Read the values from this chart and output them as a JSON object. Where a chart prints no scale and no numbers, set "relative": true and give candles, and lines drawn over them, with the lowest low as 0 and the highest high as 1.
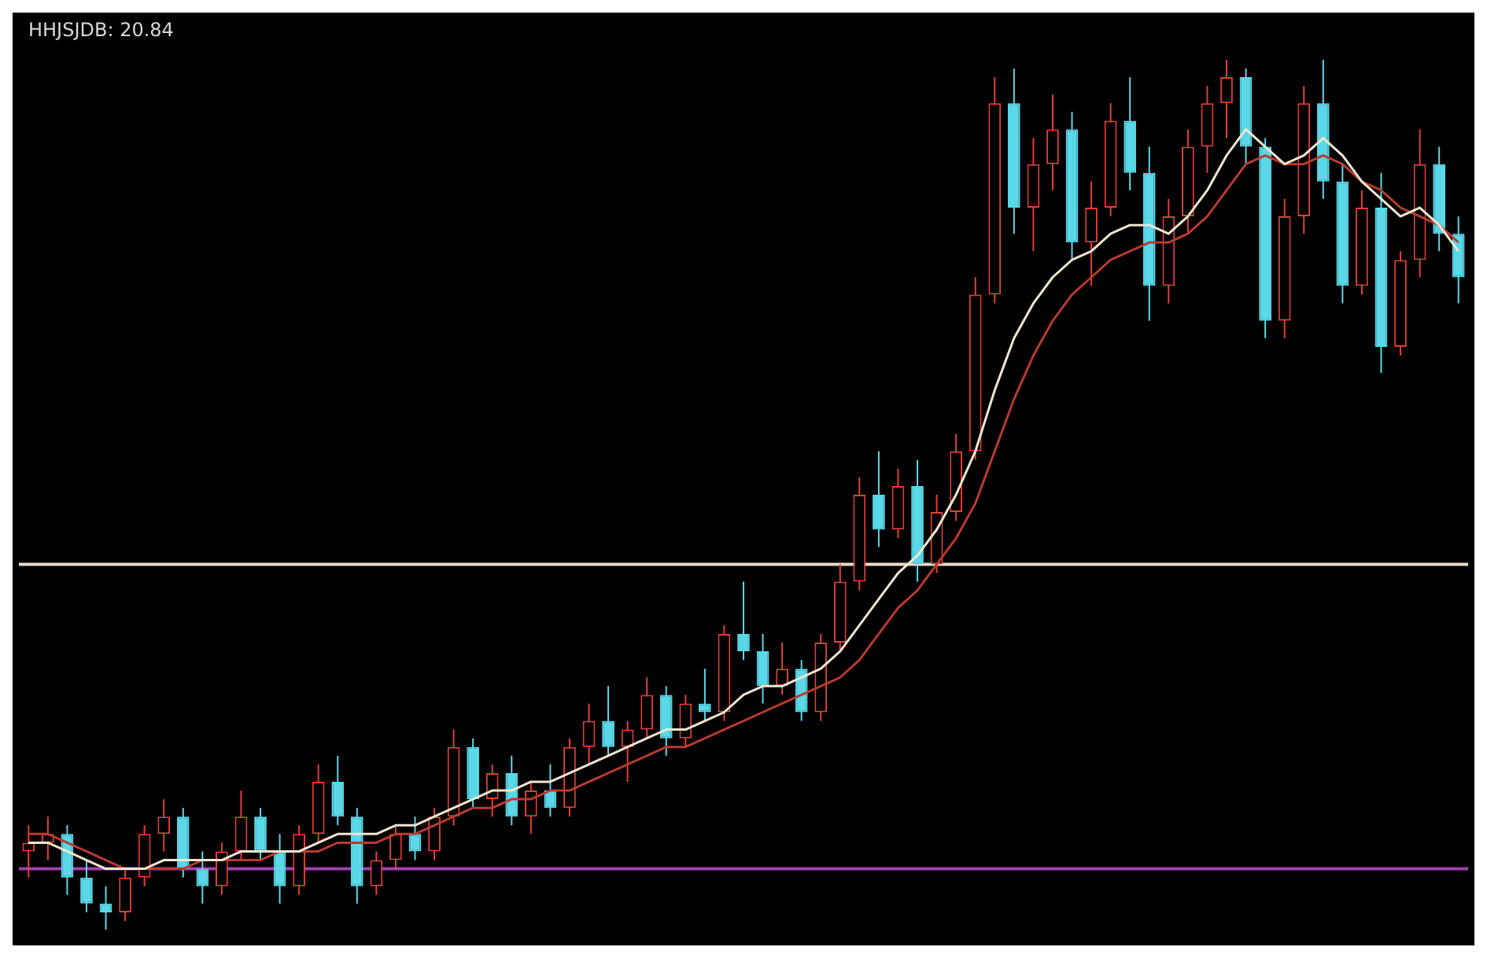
{
  "chart_data": {
    "type": "candlestick",
    "relative": true,
    "categories": [
      null,
      null,
      null,
      null,
      null,
      null,
      null,
      null,
      null,
      null,
      null,
      null,
      null,
      null,
      null,
      null,
      null,
      null,
      null,
      null,
      null,
      null,
      null,
      null,
      null,
      null,
      null,
      null,
      null,
      null,
      null,
      null,
      null,
      null,
      null,
      null,
      null,
      null,
      null,
      null,
      null,
      null,
      null,
      null,
      null,
      null,
      null,
      null,
      null,
      null,
      null,
      null,
      null,
      null,
      null,
      null,
      null,
      null,
      null,
      null,
      null,
      null,
      null,
      null,
      null,
      null,
      null,
      null,
      null,
      null,
      null,
      null,
      null,
      null,
      null
    ],
    "ohlc": [
      [
        0.09,
        0.12,
        0.06,
        0.1
      ],
      [
        0.1,
        0.13,
        0.08,
        0.11
      ],
      [
        0.11,
        0.12,
        0.04,
        0.06
      ],
      [
        0.06,
        0.08,
        0.02,
        0.03
      ],
      [
        0.03,
        0.05,
        0.0,
        0.02
      ],
      [
        0.02,
        0.07,
        0.01,
        0.06
      ],
      [
        0.06,
        0.12,
        0.05,
        0.11
      ],
      [
        0.11,
        0.15,
        0.09,
        0.13
      ],
      [
        0.13,
        0.14,
        0.06,
        0.07
      ],
      [
        0.07,
        0.09,
        0.03,
        0.05
      ],
      [
        0.05,
        0.1,
        0.04,
        0.09
      ],
      [
        0.09,
        0.16,
        0.08,
        0.13
      ],
      [
        0.13,
        0.14,
        0.08,
        0.09
      ],
      [
        0.09,
        0.11,
        0.03,
        0.05
      ],
      [
        0.05,
        0.12,
        0.04,
        0.11
      ],
      [
        0.11,
        0.19,
        0.1,
        0.17
      ],
      [
        0.17,
        0.2,
        0.12,
        0.13
      ],
      [
        0.13,
        0.14,
        0.03,
        0.05
      ],
      [
        0.05,
        0.09,
        0.04,
        0.08
      ],
      [
        0.08,
        0.12,
        0.07,
        0.11
      ],
      [
        0.11,
        0.13,
        0.08,
        0.09
      ],
      [
        0.09,
        0.14,
        0.08,
        0.13
      ],
      [
        0.13,
        0.23,
        0.12,
        0.21
      ],
      [
        0.21,
        0.22,
        0.14,
        0.15
      ],
      [
        0.15,
        0.19,
        0.13,
        0.18
      ],
      [
        0.18,
        0.2,
        0.12,
        0.13
      ],
      [
        0.13,
        0.17,
        0.11,
        0.16
      ],
      [
        0.16,
        0.19,
        0.13,
        0.14
      ],
      [
        0.14,
        0.22,
        0.13,
        0.21
      ],
      [
        0.21,
        0.26,
        0.19,
        0.24
      ],
      [
        0.24,
        0.28,
        0.2,
        0.21
      ],
      [
        0.21,
        0.24,
        0.17,
        0.23
      ],
      [
        0.23,
        0.29,
        0.22,
        0.27
      ],
      [
        0.27,
        0.28,
        0.2,
        0.22
      ],
      [
        0.22,
        0.27,
        0.21,
        0.26
      ],
      [
        0.26,
        0.3,
        0.24,
        0.25
      ],
      [
        0.25,
        0.35,
        0.24,
        0.34
      ],
      [
        0.34,
        0.4,
        0.31,
        0.32
      ],
      [
        0.32,
        0.34,
        0.26,
        0.28
      ],
      [
        0.28,
        0.33,
        0.27,
        0.3
      ],
      [
        0.3,
        0.31,
        0.24,
        0.25
      ],
      [
        0.25,
        0.34,
        0.24,
        0.33
      ],
      [
        0.33,
        0.42,
        0.32,
        0.4
      ],
      [
        0.4,
        0.52,
        0.39,
        0.5
      ],
      [
        0.5,
        0.55,
        0.44,
        0.46
      ],
      [
        0.46,
        0.53,
        0.45,
        0.51
      ],
      [
        0.51,
        0.54,
        0.4,
        0.42
      ],
      [
        0.42,
        0.5,
        0.41,
        0.48
      ],
      [
        0.48,
        0.57,
        0.47,
        0.55
      ],
      [
        0.55,
        0.75,
        0.54,
        0.73
      ],
      [
        0.73,
        0.98,
        0.72,
        0.95
      ],
      [
        0.95,
        0.99,
        0.8,
        0.83
      ],
      [
        0.83,
        0.91,
        0.78,
        0.88
      ],
      [
        0.88,
        0.96,
        0.85,
        0.92
      ],
      [
        0.92,
        0.94,
        0.77,
        0.79
      ],
      [
        0.79,
        0.86,
        0.74,
        0.83
      ],
      [
        0.83,
        0.95,
        0.82,
        0.93
      ],
      [
        0.93,
        0.98,
        0.85,
        0.87
      ],
      [
        0.87,
        0.9,
        0.7,
        0.74
      ],
      [
        0.74,
        0.84,
        0.72,
        0.82
      ],
      [
        0.82,
        0.92,
        0.8,
        0.9
      ],
      [
        0.9,
        0.97,
        0.87,
        0.95
      ],
      [
        0.95,
        1.0,
        0.91,
        0.98
      ],
      [
        0.98,
        0.99,
        0.88,
        0.9
      ],
      [
        0.9,
        0.91,
        0.68,
        0.7
      ],
      [
        0.7,
        0.84,
        0.68,
        0.82
      ],
      [
        0.82,
        0.97,
        0.8,
        0.95
      ],
      [
        0.95,
        1.0,
        0.84,
        0.86
      ],
      [
        0.86,
        0.88,
        0.72,
        0.74
      ],
      [
        0.74,
        0.85,
        0.73,
        0.83
      ],
      [
        0.83,
        0.87,
        0.64,
        0.67
      ],
      [
        0.67,
        0.78,
        0.66,
        0.77
      ],
      [
        0.77,
        0.92,
        0.75,
        0.88
      ],
      [
        0.88,
        0.9,
        0.78,
        0.8
      ],
      [
        0.8,
        0.82,
        0.72,
        0.75
      ]
    ],
    "colors": [
      "#e0403a",
      "#e0403a",
      "#5ad8e8",
      "#5ad8e8",
      "#5ad8e8",
      "#e0403a",
      "#e0403a",
      "#e0403a",
      "#5ad8e8",
      "#5ad8e8",
      "#e0403a",
      "#e0403a",
      "#5ad8e8",
      "#5ad8e8",
      "#e0403a",
      "#e0403a",
      "#5ad8e8",
      "#5ad8e8",
      "#e0403a",
      "#e0403a",
      "#5ad8e8",
      "#e0403a",
      "#e0403a",
      "#5ad8e8",
      "#e0403a",
      "#5ad8e8",
      "#e0403a",
      "#5ad8e8",
      "#e0403a",
      "#e0403a",
      "#5ad8e8",
      "#e0403a",
      "#e0403a",
      "#5ad8e8",
      "#e0403a",
      "#5ad8e8",
      "#e0403a",
      "#5ad8e8",
      "#5ad8e8",
      "#e0403a",
      "#5ad8e8",
      "#e0403a",
      "#e0403a",
      "#e0403a",
      "#5ad8e8",
      "#e0403a",
      "#5ad8e8",
      "#e0403a",
      "#e0403a",
      "#e0403a",
      "#e0403a",
      "#5ad8e8",
      "#e0403a",
      "#e0403a",
      "#5ad8e8",
      "#e0403a",
      "#e0403a",
      "#5ad8e8",
      "#5ad8e8",
      "#e0403a",
      "#e0403a",
      "#e0403a",
      "#e0403a",
      "#5ad8e8",
      "#5ad8e8",
      "#e0403a",
      "#e0403a",
      "#5ad8e8",
      "#5ad8e8",
      "#e0403a",
      "#5ad8e8",
      "#e0403a",
      "#e0403a",
      "#5ad8e8",
      "#5ad8e8"
    ],
    "series": [
      {
        "type": "line",
        "color": "#f0e6d0",
        "values": [
          0.1,
          0.1,
          0.09,
          0.08,
          0.07,
          0.07,
          0.07,
          0.08,
          0.08,
          0.08,
          0.08,
          0.09,
          0.09,
          0.09,
          0.09,
          0.1,
          0.11,
          0.11,
          0.11,
          0.12,
          0.12,
          0.13,
          0.14,
          0.15,
          0.16,
          0.16,
          0.17,
          0.17,
          0.18,
          0.19,
          0.2,
          0.21,
          0.22,
          0.23,
          0.23,
          0.24,
          0.25,
          0.27,
          0.28,
          0.28,
          0.29,
          0.3,
          0.32,
          0.35,
          0.38,
          0.41,
          0.43,
          0.46,
          0.5,
          0.55,
          0.62,
          0.68,
          0.72,
          0.75,
          0.77,
          0.78,
          0.8,
          0.81,
          0.81,
          0.8,
          0.82,
          0.85,
          0.89,
          0.92,
          0.9,
          0.88,
          0.89,
          0.91,
          0.89,
          0.86,
          0.84,
          0.82,
          0.83,
          0.81,
          0.78
        ]
      },
      {
        "type": "line",
        "color": "#b83a30",
        "values": [
          0.11,
          0.11,
          0.1,
          0.09,
          0.08,
          0.07,
          0.07,
          0.07,
          0.07,
          0.08,
          0.08,
          0.08,
          0.08,
          0.09,
          0.09,
          0.09,
          0.1,
          0.1,
          0.1,
          0.11,
          0.11,
          0.12,
          0.13,
          0.14,
          0.14,
          0.15,
          0.15,
          0.16,
          0.16,
          0.17,
          0.18,
          0.19,
          0.2,
          0.21,
          0.21,
          0.22,
          0.23,
          0.24,
          0.25,
          0.26,
          0.27,
          0.28,
          0.29,
          0.31,
          0.34,
          0.37,
          0.39,
          0.42,
          0.45,
          0.49,
          0.55,
          0.61,
          0.66,
          0.7,
          0.73,
          0.75,
          0.77,
          0.78,
          0.79,
          0.79,
          0.8,
          0.82,
          0.85,
          0.88,
          0.89,
          0.88,
          0.88,
          0.89,
          0.88,
          0.86,
          0.85,
          0.83,
          0.82,
          0.81,
          0.79
        ]
      }
    ],
    "ref_lines": [
      {
        "axis": "y",
        "value": 0.42,
        "color": "#e8dcc8"
      },
      {
        "axis": "y",
        "value": 0.07,
        "color": "#a040b0"
      }
    ],
    "annotations": [
      "HHJSJDB: 20.84"
    ]
  }
}
